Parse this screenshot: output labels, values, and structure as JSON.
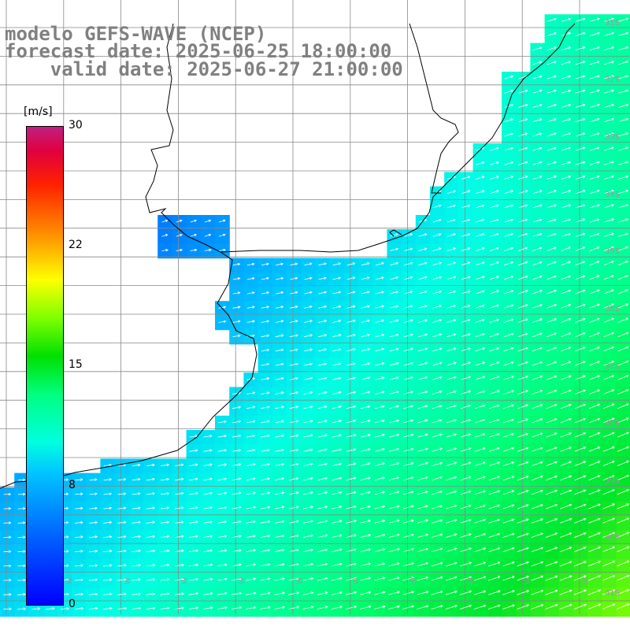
{
  "title": {
    "line1": "modelo GEFS-WAVE (NCEP)",
    "line2": "forecast date: 2025-06-25 18:00:00",
    "line3": "    valid date: 2025-06-27 21:00:00"
  },
  "colorbar": {
    "units": "[m/s]",
    "ticks": [
      "30",
      "22",
      "15",
      "8",
      "0"
    ],
    "min": 0,
    "max": 30,
    "colors": [
      "#0000ff",
      "#00c8ff",
      "#00ffe0",
      "#00e000",
      "#ffff00",
      "#ff2000",
      "#c0207f"
    ]
  },
  "lat_labels": [
    "31S",
    "32S",
    "33S",
    "34S",
    "35S",
    "36S",
    "37S",
    "38S",
    "39S",
    "40S",
    "41S"
  ],
  "lon_labels": [
    "W",
    "W",
    "W",
    "W",
    "W",
    "W",
    "W",
    "W",
    "W",
    "W",
    "W"
  ],
  "map_style": {
    "land": "#ffffff",
    "coastline": "#000000",
    "grid": "#888888",
    "arrows": "#ffffff"
  }
}
